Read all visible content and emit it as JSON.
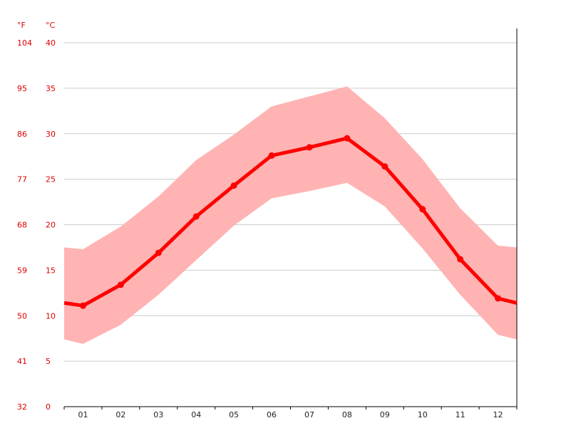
{
  "chart_data": {
    "type": "line",
    "title": "",
    "xlabel": "",
    "ylabel": "",
    "unit_labels": {
      "fahrenheit": "°F",
      "celsius": "°C"
    },
    "categories": [
      "01",
      "02",
      "03",
      "04",
      "05",
      "06",
      "07",
      "08",
      "09",
      "10",
      "11",
      "12"
    ],
    "y_ticks_celsius": [
      "0",
      "5",
      "10",
      "15",
      "20",
      "25",
      "30",
      "35",
      "40"
    ],
    "y_ticks_fahrenheit": [
      "32",
      "41",
      "50",
      "59",
      "68",
      "77",
      "86",
      "95",
      "104"
    ],
    "ylim": [
      0,
      40
    ],
    "grid": true,
    "series": [
      {
        "values": [
          11.1,
          13.4,
          16.9,
          20.9,
          24.3,
          27.6,
          28.5,
          29.5,
          26.4,
          21.7,
          16.2,
          11.9
        ]
      }
    ],
    "band": {
      "upper": [
        17.3,
        19.8,
        23.1,
        27.1,
        29.9,
        33.0,
        34.1,
        35.2,
        31.7,
        27.2,
        21.8,
        17.7
      ],
      "lower": [
        6.9,
        9.0,
        12.3,
        16.1,
        19.9,
        22.9,
        23.7,
        24.6,
        22.0,
        17.4,
        12.3,
        7.9
      ]
    },
    "edge_values": {
      "left": {
        "upper": 17.5,
        "mean": 11.4,
        "lower": 7.4
      },
      "right": {
        "upper": 17.5,
        "mean": 11.4,
        "lower": 7.4
      }
    },
    "colors": {
      "line": "#ff0000",
      "band": "#ffb3b3",
      "grid": "#cccccc",
      "axis_text_red": "#dd0000",
      "axis_text_dark": "#222222"
    }
  }
}
